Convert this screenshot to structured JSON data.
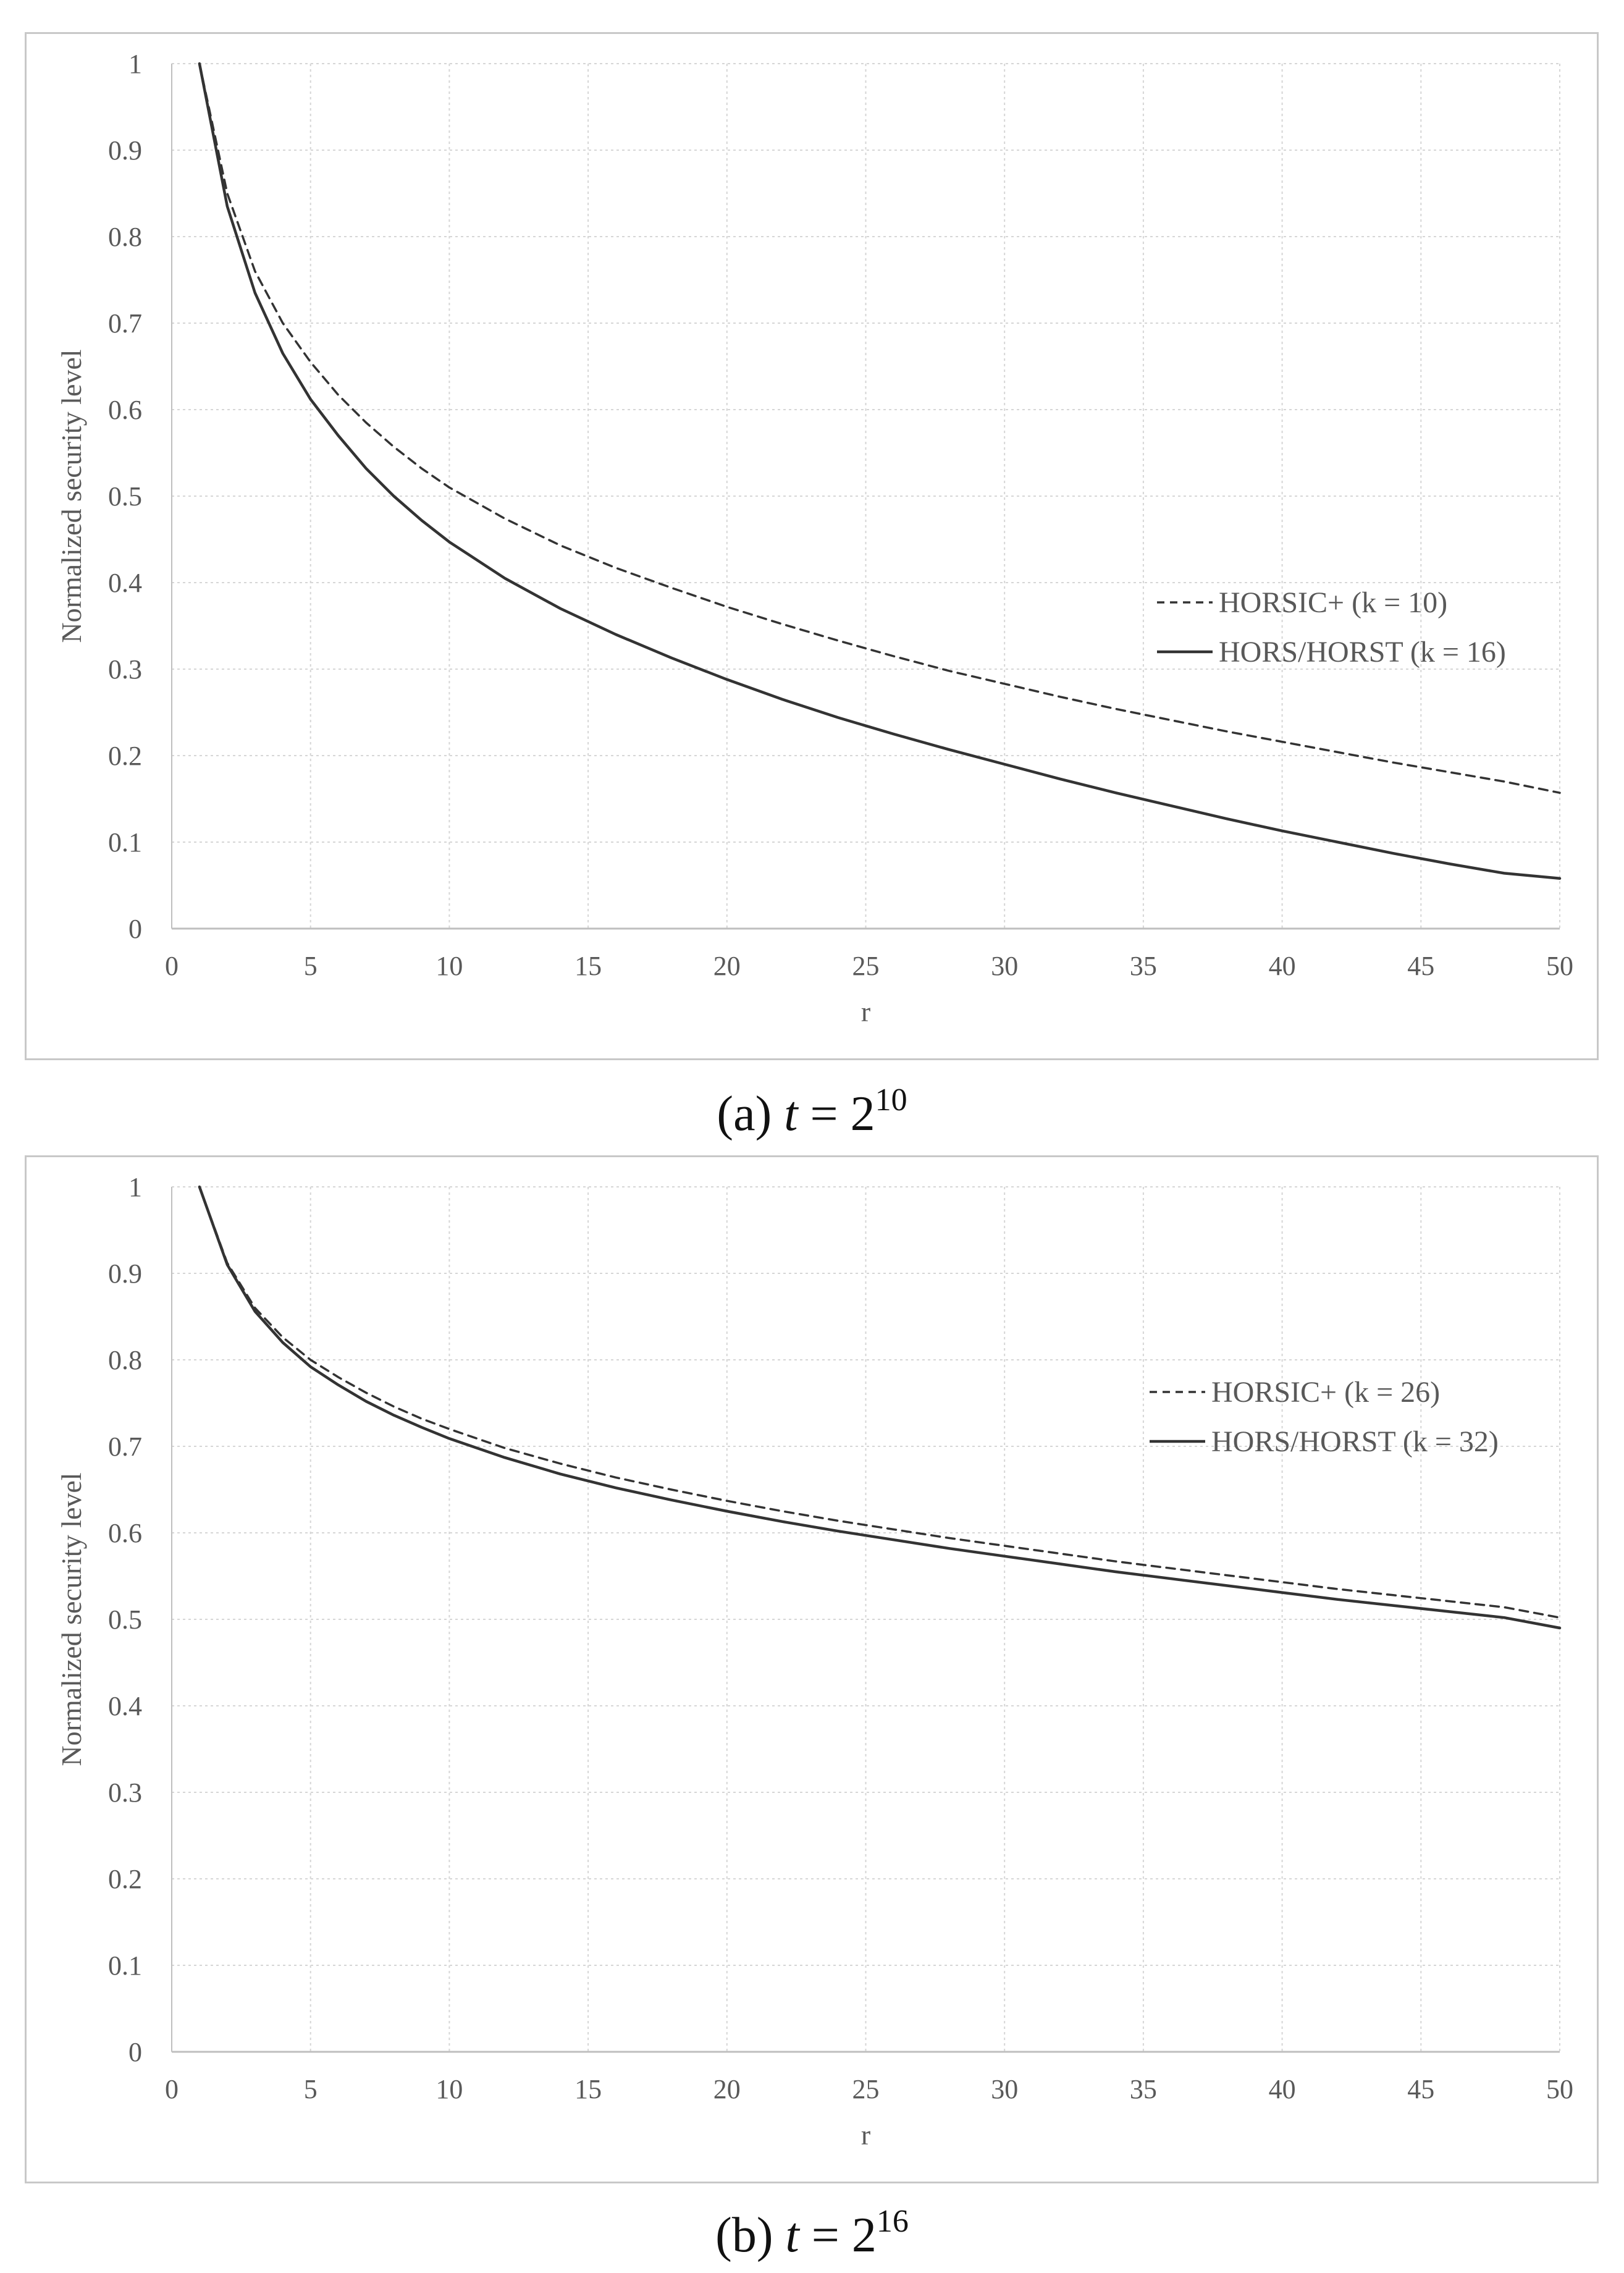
{
  "chart_data": [
    {
      "type": "line",
      "panel": "a",
      "caption": {
        "prefix": "(a)",
        "var": "t",
        "eq": "=",
        "base": "2",
        "exp": "10"
      },
      "xlabel": "r",
      "ylabel": "Normalized security level",
      "xlim": [
        0,
        50
      ],
      "ylim": [
        0,
        1
      ],
      "xticks": [
        "0",
        "5",
        "10",
        "15",
        "20",
        "25",
        "30",
        "35",
        "40",
        "45",
        "50"
      ],
      "yticks": [
        "0",
        "0.1",
        "0.2",
        "0.3",
        "0.4",
        "0.5",
        "0.6",
        "0.7",
        "0.8",
        "0.9",
        "1"
      ],
      "grid": true,
      "legend_position": "center-right",
      "series": [
        {
          "name": "HORSIC+ (k = 10)",
          "style": "dashed",
          "x": [
            1,
            2,
            3,
            4,
            5,
            6,
            7,
            8,
            9,
            10,
            12,
            14,
            16,
            18,
            20,
            22,
            24,
            26,
            28,
            30,
            32,
            34,
            36,
            38,
            40,
            42,
            44,
            46,
            48,
            50
          ],
          "y": [
            1,
            0.85,
            0.76,
            0.7,
            0.655,
            0.617,
            0.585,
            0.557,
            0.532,
            0.51,
            0.474,
            0.443,
            0.417,
            0.394,
            0.372,
            0.352,
            0.333,
            0.315,
            0.298,
            0.283,
            0.268,
            0.254,
            0.241,
            0.228,
            0.216,
            0.204,
            0.192,
            0.181,
            0.17,
            0.157
          ]
        },
        {
          "name": "HORS/HORST (k = 16)",
          "style": "solid",
          "x": [
            1,
            2,
            3,
            4,
            5,
            6,
            7,
            8,
            9,
            10,
            12,
            14,
            16,
            18,
            20,
            22,
            24,
            26,
            28,
            30,
            32,
            34,
            36,
            38,
            40,
            42,
            44,
            46,
            48,
            50
          ],
          "y": [
            1,
            0.835,
            0.735,
            0.665,
            0.612,
            0.57,
            0.532,
            0.5,
            0.472,
            0.447,
            0.405,
            0.37,
            0.34,
            0.313,
            0.288,
            0.265,
            0.244,
            0.225,
            0.207,
            0.19,
            0.173,
            0.157,
            0.142,
            0.127,
            0.113,
            0.1,
            0.087,
            0.075,
            0.064,
            0.058
          ]
        }
      ]
    },
    {
      "type": "line",
      "panel": "b",
      "caption": {
        "prefix": "(b)",
        "var": "t",
        "eq": "=",
        "base": "2",
        "exp": "16"
      },
      "xlabel": "r",
      "ylabel": "Normalized security level",
      "xlim": [
        0,
        50
      ],
      "ylim": [
        0,
        1
      ],
      "xticks": [
        "0",
        "5",
        "10",
        "15",
        "20",
        "25",
        "30",
        "35",
        "40",
        "45",
        "50"
      ],
      "yticks": [
        "0",
        "0.1",
        "0.2",
        "0.3",
        "0.4",
        "0.5",
        "0.6",
        "0.7",
        "0.8",
        "0.9",
        "1"
      ],
      "grid": true,
      "legend_position": "center-right",
      "series": [
        {
          "name": "HORSIC+ (k = 26)",
          "style": "dashed",
          "x": [
            1,
            2,
            3,
            4,
            5,
            6,
            7,
            8,
            9,
            10,
            12,
            14,
            16,
            18,
            20,
            22,
            24,
            26,
            28,
            30,
            32,
            34,
            36,
            38,
            40,
            42,
            44,
            46,
            48,
            50
          ],
          "y": [
            1,
            0.912,
            0.86,
            0.826,
            0.8,
            0.78,
            0.762,
            0.746,
            0.732,
            0.72,
            0.698,
            0.68,
            0.664,
            0.65,
            0.637,
            0.625,
            0.614,
            0.604,
            0.594,
            0.585,
            0.576,
            0.567,
            0.559,
            0.551,
            0.543,
            0.535,
            0.528,
            0.521,
            0.514,
            0.502
          ]
        },
        {
          "name": "HORS/HORST (k = 32)",
          "style": "solid",
          "x": [
            1,
            2,
            3,
            4,
            5,
            6,
            7,
            8,
            9,
            10,
            12,
            14,
            16,
            18,
            20,
            22,
            24,
            26,
            28,
            30,
            32,
            34,
            36,
            38,
            40,
            42,
            44,
            46,
            48,
            50
          ],
          "y": [
            1,
            0.91,
            0.856,
            0.82,
            0.792,
            0.771,
            0.752,
            0.736,
            0.722,
            0.709,
            0.687,
            0.668,
            0.652,
            0.638,
            0.625,
            0.613,
            0.602,
            0.592,
            0.582,
            0.573,
            0.564,
            0.555,
            0.547,
            0.539,
            0.531,
            0.523,
            0.516,
            0.509,
            0.502,
            0.49
          ]
        }
      ]
    }
  ],
  "colors": {
    "line": "#333333",
    "grid": "#d6d6d6",
    "axis": "#bfbfbf",
    "text": "#595959"
  }
}
